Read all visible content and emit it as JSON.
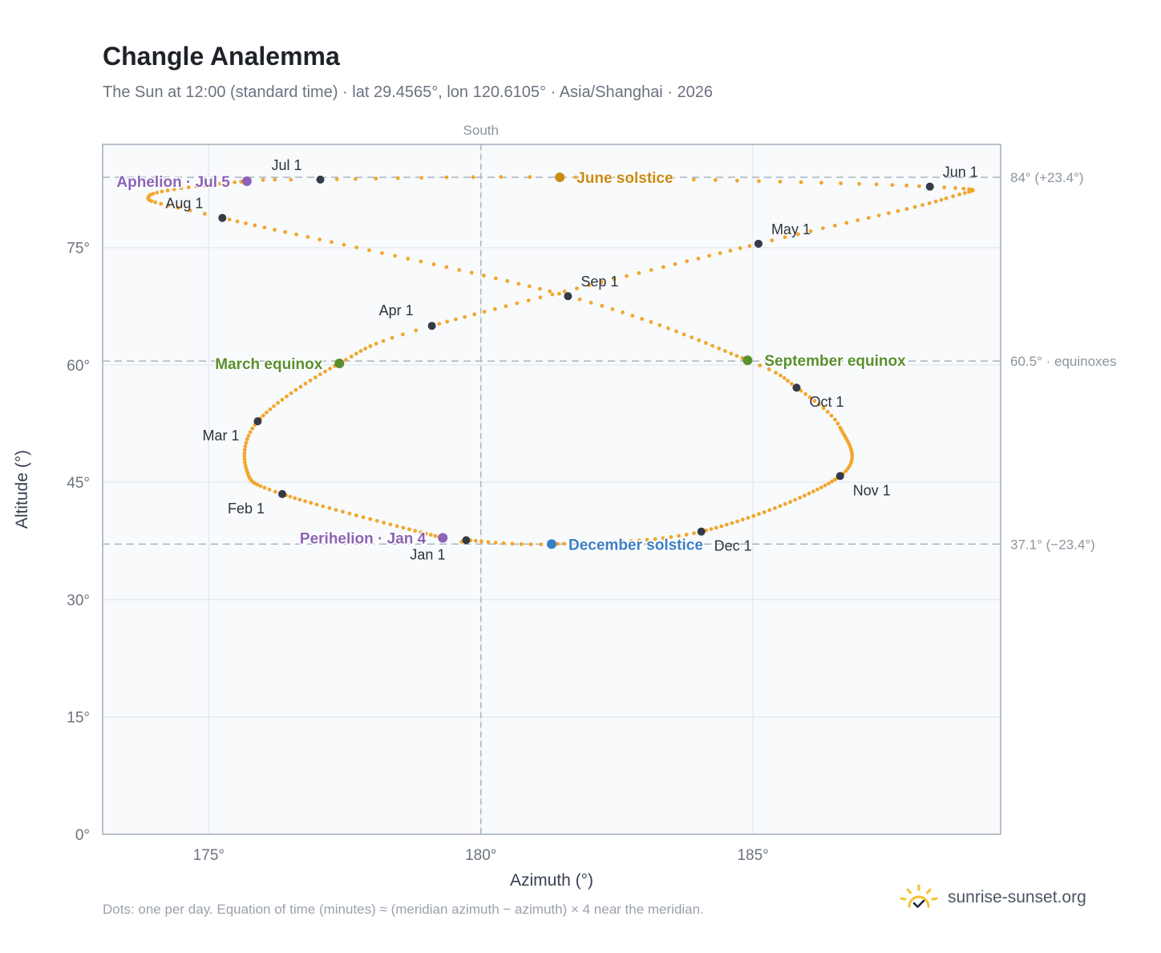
{
  "header": {
    "title": "Changle Analemma",
    "subtitle": "The Sun at 12:00 (standard time) · lat 29.4565°, lon 120.6105° · Asia/Shanghai · 2026"
  },
  "footer": {
    "footnote": "Dots: one per day. Equation of time (minutes) ≈ (meridian azimuth − azimuth) × 4 near the meridian.",
    "brand": "sunrise-sunset.org",
    "brand_icon": "sun-check-icon"
  },
  "colors": {
    "path": "#f2a72e",
    "month_marker": "#343a46",
    "solstice_june": "#c98b14",
    "solstice_december": "#3b7fc4",
    "equinox": "#5a8f2e",
    "apsis": "#8c63b5",
    "plot_bg": "#f8fafc",
    "grid": "#e6ebf0",
    "frame": "#a3adba"
  },
  "chart_data": {
    "type": "scatter",
    "title": "Changle Analemma",
    "xlabel": "Azimuth (°)",
    "ylabel": "Altitude (°)",
    "xlim": [
      173.05,
      189.55
    ],
    "ylim": [
      0,
      88.2
    ],
    "xticks": [
      175,
      180,
      185
    ],
    "xtick_labels": [
      "175°",
      "180°",
      "185°"
    ],
    "yticks": [
      0,
      15,
      30,
      45,
      60,
      75
    ],
    "ytick_labels": [
      "0°",
      "15°",
      "30°",
      "45°",
      "60°",
      "75°"
    ],
    "grid": true,
    "meridian": {
      "x": 180,
      "label": "South"
    },
    "reference_lines": [
      {
        "y": 84.0,
        "label": "84° (+23.4°)"
      },
      {
        "y": 60.5,
        "label": "60.5° · equinoxes"
      },
      {
        "y": 37.1,
        "label": "37.1° (−23.4°)"
      }
    ],
    "path_keypoints": [
      {
        "doy": 1,
        "az": 179.73,
        "alt": 37.6
      },
      {
        "doy": 4,
        "az": 179.3,
        "alt": 37.9
      },
      {
        "doy": 32,
        "az": 176.35,
        "alt": 43.5
      },
      {
        "doy": 45,
        "az": 175.7,
        "alt": 46.5
      },
      {
        "doy": 60,
        "az": 175.9,
        "alt": 52.8
      },
      {
        "doy": 79,
        "az": 177.4,
        "alt": 60.2
      },
      {
        "doy": 91,
        "az": 179.1,
        "alt": 65.0
      },
      {
        "doy": 121,
        "az": 185.1,
        "alt": 75.5
      },
      {
        "doy": 140,
        "az": 188.55,
        "alt": 81.3
      },
      {
        "doy": 152,
        "az": 188.25,
        "alt": 82.8
      },
      {
        "doy": 172,
        "az": 181.45,
        "alt": 84.0
      },
      {
        "doy": 182,
        "az": 177.05,
        "alt": 83.7
      },
      {
        "doy": 186,
        "az": 175.7,
        "alt": 83.5
      },
      {
        "doy": 202,
        "az": 173.9,
        "alt": 81.6
      },
      {
        "doy": 213,
        "az": 175.25,
        "alt": 78.8
      },
      {
        "doy": 244,
        "az": 181.6,
        "alt": 68.8
      },
      {
        "doy": 266,
        "az": 184.9,
        "alt": 60.6
      },
      {
        "doy": 274,
        "az": 185.8,
        "alt": 57.1
      },
      {
        "doy": 285,
        "az": 186.6,
        "alt": 52.0
      },
      {
        "doy": 305,
        "az": 186.6,
        "alt": 45.8
      },
      {
        "doy": 335,
        "az": 184.05,
        "alt": 38.7
      },
      {
        "doy": 355,
        "az": 181.3,
        "alt": 37.1
      },
      {
        "doy": 366,
        "az": 179.73,
        "alt": 37.6
      }
    ],
    "month_markers": [
      {
        "label": "Jan 1",
        "az": 179.73,
        "alt": 37.6,
        "dx": -70,
        "dy": 24
      },
      {
        "label": "Feb 1",
        "az": 176.35,
        "alt": 43.5,
        "dx": -68,
        "dy": 24
      },
      {
        "label": "Mar 1",
        "az": 175.9,
        "alt": 52.8,
        "dx": -69,
        "dy": 24
      },
      {
        "label": "Apr 1",
        "az": 179.1,
        "alt": 65.0,
        "dx": -66,
        "dy": -13
      },
      {
        "label": "May 1",
        "az": 185.1,
        "alt": 75.5,
        "dx": 16,
        "dy": -12
      },
      {
        "label": "Jun 1",
        "az": 188.25,
        "alt": 82.8,
        "dx": 16,
        "dy": -12
      },
      {
        "label": "Jul 1",
        "az": 177.05,
        "alt": 83.7,
        "dx": -61,
        "dy": -12
      },
      {
        "label": "Aug 1",
        "az": 175.25,
        "alt": 78.8,
        "dx": -71,
        "dy": -12
      },
      {
        "label": "Sep 1",
        "az": 181.6,
        "alt": 68.8,
        "dx": 16,
        "dy": -12
      },
      {
        "label": "Oct 1",
        "az": 185.8,
        "alt": 57.1,
        "dx": 16,
        "dy": 24
      },
      {
        "label": "Nov 1",
        "az": 186.6,
        "alt": 45.8,
        "dx": 16,
        "dy": 24
      },
      {
        "label": "Dec 1",
        "az": 184.05,
        "alt": 38.7,
        "dx": 16,
        "dy": 24
      }
    ],
    "events": [
      {
        "label": "June solstice",
        "kind": "solstice_june",
        "az": 181.45,
        "alt": 84.0,
        "anchor": "start",
        "dx": 21,
        "dy": 7
      },
      {
        "label": "March equinox",
        "kind": "equinox",
        "az": 177.4,
        "alt": 60.2,
        "anchor": "end",
        "dx": -21,
        "dy": 7
      },
      {
        "label": "September equinox",
        "kind": "equinox",
        "az": 184.9,
        "alt": 60.6,
        "anchor": "start",
        "dx": 21,
        "dy": 7
      },
      {
        "label": "December solstice",
        "kind": "solstice_december",
        "az": 181.3,
        "alt": 37.1,
        "anchor": "start",
        "dx": 21,
        "dy": 7
      },
      {
        "label": "Aphelion · Jul 5",
        "kind": "apsis",
        "az": 175.7,
        "alt": 83.5,
        "anchor": "end",
        "dx": -21,
        "dy": 7
      },
      {
        "label": "Perihelion · Jan 4",
        "kind": "apsis",
        "az": 179.3,
        "alt": 37.9,
        "anchor": "end",
        "dx": -21,
        "dy": 7
      }
    ]
  }
}
